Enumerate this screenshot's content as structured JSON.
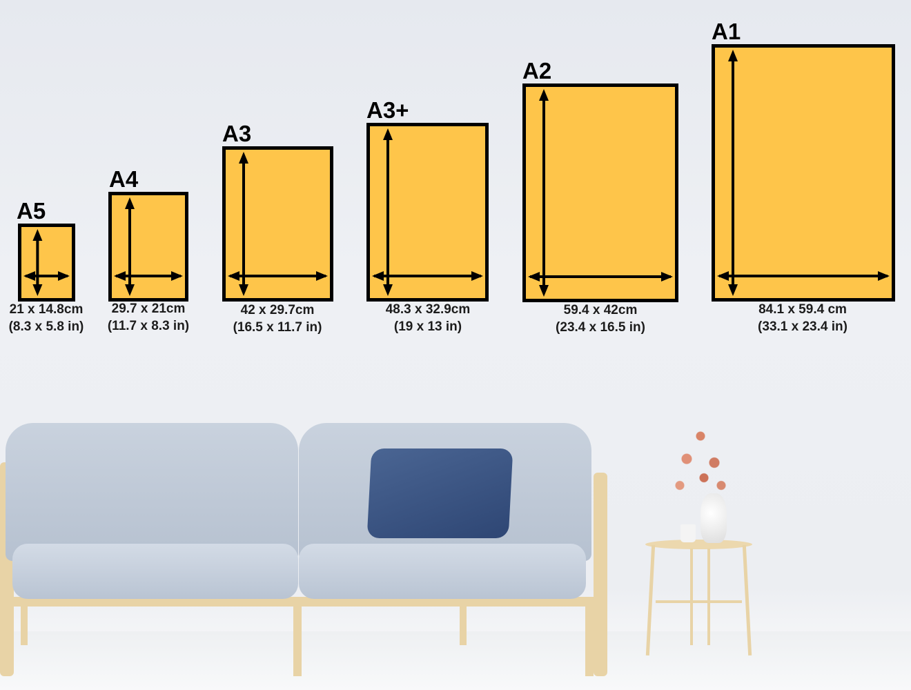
{
  "colors": {
    "frame_fill": "#fec54a",
    "frame_border": "#000000",
    "wall": "#e9ecf1"
  },
  "sizes": [
    {
      "name": "A5",
      "cm": "21 x 14.8cm",
      "inches": "(8.3 x 5.8 in)"
    },
    {
      "name": "A4",
      "cm": "29.7 x 21cm",
      "inches": "(11.7 x 8.3 in)"
    },
    {
      "name": "A3",
      "cm": "42 x 29.7cm",
      "inches": "(16.5 x 11.7 in)"
    },
    {
      "name": "A3+",
      "cm": "48.3 x 32.9cm",
      "inches": "(19 x 13 in)"
    },
    {
      "name": "A2",
      "cm": "59.4 x 42cm",
      "inches": "(23.4 x 16.5 in)"
    },
    {
      "name": "A1",
      "cm": "84.1 x 59.4 cm",
      "inches": "(33.1 x 23.4 in)"
    }
  ]
}
